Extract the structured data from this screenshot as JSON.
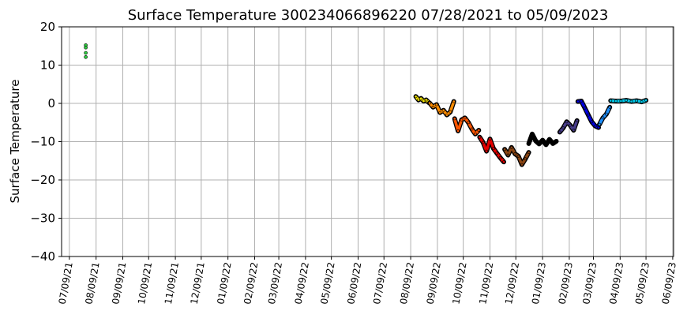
{
  "chart_data": {
    "type": "scatter",
    "title": "Surface Temperature 300234066896220  07/28/2021 to 05/09/2023",
    "xlabel": "",
    "ylabel": "Surface Temperature",
    "ylim": [
      -40,
      20
    ],
    "yticks": [
      20,
      10,
      0,
      -10,
      -20,
      -30,
      -40
    ],
    "ytick_labels": [
      "20",
      "10",
      "0",
      "−10",
      "−20",
      "−30",
      "−40"
    ],
    "xlim": [
      "2021-06-30",
      "2023-06-10"
    ],
    "xticks": [
      "2021-07-09",
      "2021-08-09",
      "2021-09-09",
      "2021-10-09",
      "2021-11-09",
      "2021-12-09",
      "2022-01-09",
      "2022-02-09",
      "2022-03-09",
      "2022-04-09",
      "2022-05-09",
      "2022-06-09",
      "2022-07-09",
      "2022-08-09",
      "2022-09-09",
      "2022-10-09",
      "2022-11-09",
      "2022-12-09",
      "2023-01-09",
      "2023-02-09",
      "2023-03-09",
      "2023-04-09",
      "2023-05-09",
      "2023-06-09"
    ],
    "xtick_labels": [
      "07/09/21",
      "08/09/21",
      "09/09/21",
      "10/09/21",
      "11/09/21",
      "12/09/21",
      "01/09/22",
      "02/09/22",
      "03/09/22",
      "04/09/22",
      "05/09/22",
      "06/09/22",
      "07/09/22",
      "08/09/22",
      "09/09/22",
      "10/09/22",
      "11/09/22",
      "12/09/22",
      "01/09/23",
      "02/09/23",
      "03/09/23",
      "04/09/23",
      "05/09/23",
      "06/09/23"
    ],
    "grid": true,
    "series": [
      {
        "color": "#2ecc40",
        "x": [
          "2021-07-28",
          "2021-07-28",
          "2021-07-28",
          "2021-07-28"
        ],
        "y": [
          15.2,
          14.6,
          13.2,
          12.1
        ]
      },
      {
        "color": "#ffee00",
        "x": [
          "2022-08-15",
          "2022-08-18",
          "2022-08-21",
          "2022-08-24",
          "2022-08-27",
          "2022-08-30"
        ],
        "y": [
          1.8,
          0.9,
          1.3,
          0.6,
          0.9,
          0.2
        ]
      },
      {
        "color": "#ff8c00",
        "x": [
          "2022-08-31",
          "2022-09-04",
          "2022-09-08",
          "2022-09-12",
          "2022-09-16",
          "2022-09-20",
          "2022-09-24",
          "2022-09-28"
        ],
        "y": [
          0.1,
          -1.0,
          -0.3,
          -2.4,
          -1.8,
          -3.0,
          -2.2,
          0.5
        ]
      },
      {
        "color": "#ff5500",
        "x": [
          "2022-09-29",
          "2022-10-03",
          "2022-10-07",
          "2022-10-11",
          "2022-10-15",
          "2022-10-19",
          "2022-10-23",
          "2022-10-27"
        ],
        "y": [
          -4.0,
          -7.2,
          -4.3,
          -3.8,
          -5.0,
          -6.7,
          -8.0,
          -7.0
        ]
      },
      {
        "color": "#e60000",
        "x": [
          "2022-10-28",
          "2022-11-01",
          "2022-11-05",
          "2022-11-09",
          "2022-11-13",
          "2022-11-17",
          "2022-11-21",
          "2022-11-25"
        ],
        "y": [
          -8.8,
          -10.2,
          -12.5,
          -9.3,
          -11.8,
          -13.0,
          -14.2,
          -15.3
        ]
      },
      {
        "color": "#8b4513",
        "x": [
          "2022-11-26",
          "2022-11-30",
          "2022-12-04",
          "2022-12-08",
          "2022-12-12",
          "2022-12-16",
          "2022-12-20",
          "2022-12-24"
        ],
        "y": [
          -12.0,
          -13.5,
          -11.5,
          -13.2,
          -13.8,
          -16.0,
          -14.5,
          -12.8
        ]
      },
      {
        "color": "#000000",
        "x": [
          "2022-12-24",
          "2022-12-28",
          "2023-01-01",
          "2023-01-05",
          "2023-01-09",
          "2023-01-13",
          "2023-01-17",
          "2023-01-21",
          "2023-01-25"
        ],
        "y": [
          -10.5,
          -8.0,
          -9.8,
          -10.6,
          -9.6,
          -10.8,
          -9.4,
          -10.5,
          -9.9
        ]
      },
      {
        "color": "#483d8b",
        "x": [
          "2023-01-29",
          "2023-02-02",
          "2023-02-06",
          "2023-02-10",
          "2023-02-14",
          "2023-02-18"
        ],
        "y": [
          -7.5,
          -6.4,
          -4.8,
          -5.7,
          -7.0,
          -4.5
        ]
      },
      {
        "color": "#0000e0",
        "x": [
          "2023-02-19",
          "2023-02-23",
          "2023-02-27",
          "2023-03-03",
          "2023-03-07",
          "2023-03-11",
          "2023-03-15"
        ],
        "y": [
          0.5,
          0.6,
          -1.2,
          -3.0,
          -4.8,
          -5.9,
          -6.3
        ]
      },
      {
        "color": "#1e90ff",
        "x": [
          "2023-03-16",
          "2023-03-20",
          "2023-03-24",
          "2023-03-28"
        ],
        "y": [
          -5.5,
          -3.8,
          -2.8,
          -1.0
        ]
      },
      {
        "color": "#00c8e8",
        "x": [
          "2023-03-29",
          "2023-04-04",
          "2023-04-10",
          "2023-04-16",
          "2023-04-22",
          "2023-04-28",
          "2023-05-04",
          "2023-05-09"
        ],
        "y": [
          0.7,
          0.6,
          0.6,
          0.8,
          0.5,
          0.7,
          0.4,
          0.8
        ]
      }
    ]
  }
}
